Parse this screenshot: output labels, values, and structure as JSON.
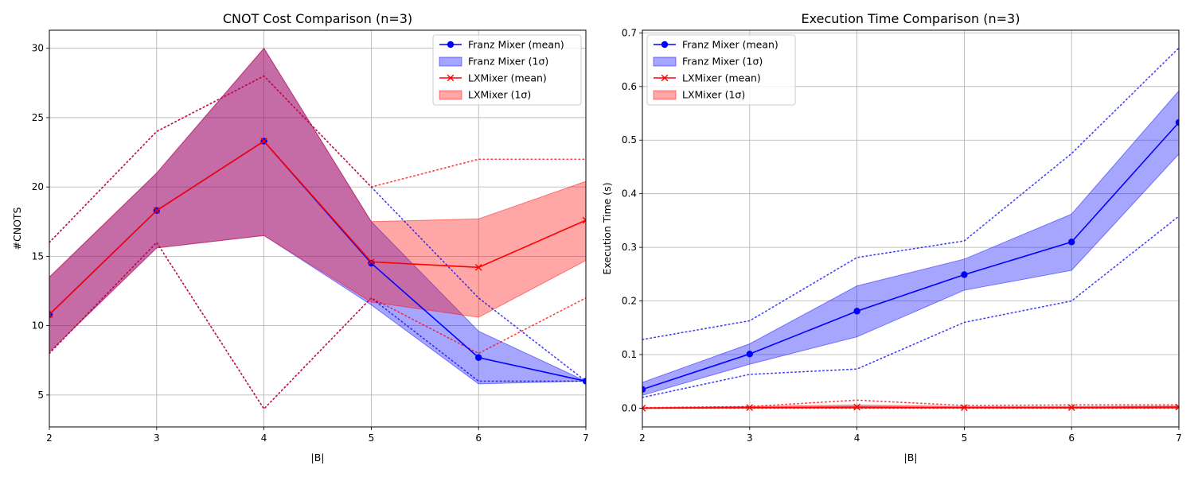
{
  "chart_data": [
    {
      "type": "line",
      "title": "CNOT Cost Comparison (n=3)",
      "xlabel": "|B|",
      "ylabel": "#CNOTS",
      "xlim": [
        2,
        7
      ],
      "ylim": [
        2.7,
        31.3
      ],
      "x": [
        2,
        3,
        4,
        5,
        6,
        7
      ],
      "xticks": [
        "2",
        "3",
        "4",
        "5",
        "6",
        "7"
      ],
      "yticks": [
        "5",
        "10",
        "15",
        "20",
        "25",
        "30"
      ],
      "ytick_values": [
        5,
        10,
        15,
        20,
        25,
        30
      ],
      "grid": true,
      "legend_position": "upper right",
      "legend": [
        "Franz Mixer (mean)",
        "Franz Mixer (1σ)",
        "LXMixer (mean)",
        "LXMixer (1σ)"
      ],
      "series": [
        {
          "name": "Franz Mixer (mean)",
          "marker": "o",
          "color": "#0000ff",
          "mean": [
            10.8,
            18.3,
            23.3,
            14.5,
            7.7,
            6.0
          ],
          "band_low": [
            8.1,
            15.6,
            16.5,
            11.5,
            5.8,
            6.0
          ],
          "band_high": [
            13.5,
            21.0,
            30.0,
            17.5,
            9.6,
            6.0
          ],
          "min": [
            8.0,
            16.0,
            4.0,
            12.0,
            6.0,
            6.0
          ],
          "max": [
            16.0,
            24.0,
            28.0,
            20.0,
            12.0,
            6.0
          ]
        },
        {
          "name": "LXMixer (mean)",
          "marker": "x",
          "color": "#ff0000",
          "mean": [
            10.8,
            18.3,
            23.3,
            14.6,
            14.2,
            17.6
          ],
          "band_low": [
            8.1,
            15.6,
            16.5,
            11.7,
            10.6,
            14.7
          ],
          "band_high": [
            13.5,
            21.0,
            30.0,
            17.5,
            17.7,
            20.4
          ],
          "min": [
            8.0,
            16.0,
            4.0,
            12.0,
            8.0,
            12.0
          ],
          "max": [
            16.0,
            24.0,
            28.0,
            20.0,
            22.0,
            22.0
          ]
        }
      ]
    },
    {
      "type": "line",
      "title": "Execution Time Comparison (n=3)",
      "xlabel": "|B|",
      "ylabel": "Execution Time (s)",
      "xlim": [
        2,
        7
      ],
      "ylim": [
        -0.035,
        0.705
      ],
      "x": [
        2,
        3,
        4,
        5,
        6,
        7
      ],
      "xticks": [
        "2",
        "3",
        "4",
        "5",
        "6",
        "7"
      ],
      "yticks": [
        "0.0",
        "0.1",
        "0.2",
        "0.3",
        "0.4",
        "0.5",
        "0.6",
        "0.7"
      ],
      "ytick_values": [
        0.0,
        0.1,
        0.2,
        0.3,
        0.4,
        0.5,
        0.6,
        0.7
      ],
      "grid": true,
      "legend_position": "upper left",
      "legend": [
        "Franz Mixer (mean)",
        "Franz Mixer (1σ)",
        "LXMixer (mean)",
        "LXMixer (1σ)"
      ],
      "series": [
        {
          "name": "Franz Mixer (mean)",
          "marker": "o",
          "color": "#0000ff",
          "mean": [
            0.035,
            0.101,
            0.181,
            0.249,
            0.31,
            0.533
          ],
          "band_low": [
            0.024,
            0.082,
            0.133,
            0.22,
            0.257,
            0.474
          ],
          "band_high": [
            0.048,
            0.12,
            0.228,
            0.278,
            0.362,
            0.592
          ],
          "min": [
            0.02,
            0.063,
            0.073,
            0.16,
            0.2,
            0.358
          ],
          "max": [
            0.128,
            0.163,
            0.281,
            0.312,
            0.475,
            0.672
          ]
        },
        {
          "name": "LXMixer (mean)",
          "marker": "x",
          "color": "#ff0000",
          "mean": [
            0.0,
            0.001,
            0.002,
            0.001,
            0.001,
            0.002
          ],
          "band_low": [
            0.0,
            0.0,
            0.0,
            0.0,
            0.0,
            0.0
          ],
          "band_high": [
            0.001,
            0.003,
            0.006,
            0.003,
            0.003,
            0.004
          ],
          "min": [
            0.0,
            0.0,
            0.0,
            0.0,
            0.0,
            0.0
          ],
          "max": [
            0.001,
            0.003,
            0.015,
            0.005,
            0.006,
            0.006
          ]
        }
      ]
    }
  ],
  "colors": {
    "franz": "#0000ff",
    "lx": "#ff0000",
    "grid": "#b0b0b0"
  }
}
